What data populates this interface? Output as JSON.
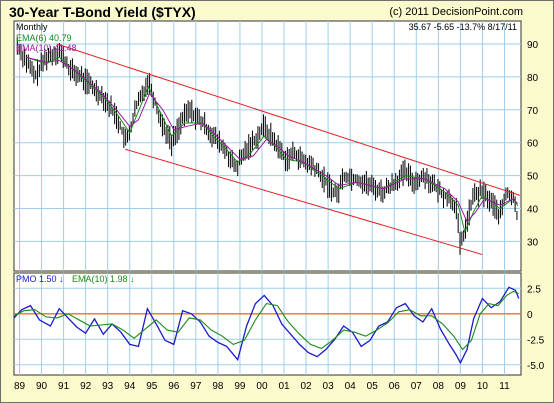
{
  "header": {
    "title": "30-Year T-Bond Yield ($TYX)",
    "copyright": "(c) 2011 DecisionPoint.com"
  },
  "chart_data": [
    {
      "type": "line",
      "title": "30-Year T-Bond Yield ($TYX)",
      "period_label": "Monthly",
      "readout": {
        "close": "35.67",
        "change": "-5.65",
        "pct": "-13.7%",
        "date": "8/17/11"
      },
      "legend": [
        {
          "name": "EMA(6)",
          "value": "40.79",
          "color": "#1a8a1a"
        },
        {
          "name": "EMA(10)",
          "value": "41.48",
          "color": "#9a1aa0"
        }
      ],
      "ylim": [
        21,
        97
      ],
      "y_ticks": [
        "30",
        "40",
        "50",
        "60",
        "70",
        "80",
        "90"
      ],
      "x_ticks": [
        "89",
        "90",
        "91",
        "92",
        "93",
        "94",
        "95",
        "96",
        "97",
        "98",
        "99",
        "00",
        "01",
        "02",
        "03",
        "04",
        "05",
        "06",
        "07",
        "08",
        "09",
        "10",
        "11"
      ],
      "x_range": [
        1988.75,
        2011.75
      ],
      "grid": true,
      "series": [
        {
          "name": "",
          "color": "#000000",
          "x": [
            1988.9,
            1989.3,
            1989.7,
            1990.2,
            1990.8,
            1991.3,
            1991.8,
            1992.3,
            1992.8,
            1993.4,
            1993.85,
            1994.3,
            1994.85,
            1995.4,
            1995.9,
            1996.3,
            1996.7,
            1997.3,
            1997.8,
            1998.4,
            1998.8,
            1999.3,
            1999.8,
            2000.1,
            2000.6,
            2001.1,
            2001.5,
            2001.9,
            2002.3,
            2002.9,
            2003.4,
            2003.7,
            2004.3,
            2004.9,
            2005.5,
            2006.0,
            2006.5,
            2006.9,
            2007.4,
            2007.9,
            2008.3,
            2008.8,
            2009.0,
            2009.3,
            2009.6,
            2010.0,
            2010.4,
            2010.8,
            2011.1,
            2011.4,
            2011.6
          ],
          "y": [
            89.5,
            85,
            80,
            86,
            88,
            82,
            80,
            77,
            74,
            68,
            60,
            71,
            79,
            67,
            60,
            66,
            70,
            66,
            62,
            57,
            52,
            58,
            62,
            65,
            60,
            55,
            57,
            54,
            53,
            48,
            44,
            50,
            49,
            47,
            45,
            48,
            51,
            48,
            50,
            46,
            44,
            41,
            28,
            36,
            44,
            45,
            42,
            38,
            45,
            43,
            37
          ]
        },
        {
          "name": "EMA(6)",
          "color": "#1a8a1a",
          "x": [
            1989.3,
            1990.2,
            1990.8,
            1991.3,
            1991.8,
            1992.3,
            1992.8,
            1993.4,
            1994.0,
            1994.3,
            1994.85,
            1995.4,
            1995.9,
            1996.5,
            1997.3,
            1997.8,
            1998.4,
            1998.9,
            1999.5,
            2000.1,
            2000.6,
            2001.1,
            2001.9,
            2002.9,
            2003.5,
            2004.3,
            2004.9,
            2005.5,
            2006.5,
            2007.4,
            2008.3,
            2008.9,
            2009.2,
            2009.6,
            2010.0,
            2010.8,
            2011.4,
            2011.6
          ],
          "y": [
            86,
            84,
            86,
            83,
            80,
            77,
            74,
            69,
            63,
            68,
            77,
            69,
            62,
            66,
            66,
            62,
            58,
            54,
            57,
            62,
            59,
            55,
            54,
            49,
            46,
            48,
            47,
            46,
            50,
            49,
            45,
            41,
            33,
            39,
            44,
            40,
            43,
            40.79
          ]
        },
        {
          "name": "EMA(10)",
          "color": "#9a1aa0",
          "x": [
            1989.3,
            1990.2,
            1990.8,
            1991.3,
            1991.8,
            1992.3,
            1992.8,
            1993.4,
            1994.0,
            1994.4,
            1994.9,
            1995.5,
            1996.0,
            1996.6,
            1997.3,
            1997.8,
            1998.4,
            1999.0,
            1999.6,
            2000.2,
            2000.7,
            2001.2,
            2001.9,
            2002.9,
            2003.5,
            2004.3,
            2004.9,
            2005.5,
            2006.5,
            2007.4,
            2008.3,
            2008.9,
            2009.3,
            2009.7,
            2010.1,
            2010.8,
            2011.4,
            2011.6
          ],
          "y": [
            86,
            84.5,
            85,
            83,
            80.5,
            77.5,
            74.5,
            70,
            65,
            67,
            75,
            70,
            64,
            65,
            66,
            63,
            59,
            55,
            56,
            61,
            59,
            56,
            54,
            50,
            47,
            48,
            47,
            46,
            49,
            49,
            46,
            42,
            36,
            39,
            43,
            41,
            43,
            41.48
          ]
        }
      ],
      "channel": {
        "color": "#e02020",
        "upper": {
          "x": [
            1990.7,
            2011.7
          ],
          "y": [
            90,
            44
          ]
        },
        "lower": {
          "x": [
            1993.8,
            2010.0
          ],
          "y": [
            58,
            26
          ]
        }
      }
    },
    {
      "type": "line",
      "title": "",
      "legend": [
        {
          "name": "PMO",
          "value": "1.50",
          "arrow": "down",
          "color": "#1a1ad0"
        },
        {
          "name": "EMA(10)",
          "value": "1.98",
          "arrow": "down",
          "color": "#1a8a1a"
        }
      ],
      "ylim": [
        -6,
        4
      ],
      "y_ticks": [
        "2.5",
        "0",
        "-2.5",
        "-5.0"
      ],
      "zero_line_color": "#e07a1a",
      "grid": true,
      "series": [
        {
          "name": "PMO",
          "color": "#1a1ad0",
          "x": [
            1988.75,
            1989.1,
            1989.5,
            1989.9,
            1990.4,
            1990.8,
            1991.2,
            1991.6,
            1992.0,
            1992.4,
            1992.8,
            1993.2,
            1993.6,
            1994.0,
            1994.4,
            1994.8,
            1995.2,
            1995.6,
            1996.0,
            1996.4,
            1996.8,
            1997.2,
            1997.6,
            1998.0,
            1998.4,
            1998.9,
            1999.3,
            1999.7,
            2000.1,
            2000.5,
            2000.9,
            2001.3,
            2001.7,
            2002.1,
            2002.5,
            2002.9,
            2003.3,
            2003.7,
            2004.1,
            2004.5,
            2004.9,
            2005.3,
            2005.7,
            2006.1,
            2006.5,
            2006.9,
            2007.3,
            2007.7,
            2008.1,
            2008.5,
            2008.8,
            2009.0,
            2009.3,
            2009.6,
            2010.0,
            2010.4,
            2010.8,
            2011.2,
            2011.5,
            2011.65
          ],
          "y": [
            -0.4,
            0.4,
            0.8,
            -0.6,
            -1.2,
            0.5,
            -0.4,
            -1.3,
            -1.9,
            -0.5,
            -2.0,
            -1.0,
            -1.8,
            -3.0,
            -3.2,
            0.5,
            -1.0,
            -2.6,
            -3.0,
            0.3,
            0.0,
            -0.8,
            -2.2,
            -2.8,
            -3.2,
            -4.5,
            -1.2,
            1.0,
            1.8,
            0.8,
            -1.0,
            -2.0,
            -3.0,
            -3.8,
            -4.2,
            -3.5,
            -2.5,
            -1.2,
            -1.8,
            -3.2,
            -2.6,
            -1.2,
            -0.8,
            0.6,
            1.0,
            -0.2,
            -0.8,
            0.5,
            -1.5,
            -3.0,
            -4.0,
            -4.8,
            -3.5,
            -0.5,
            1.5,
            0.6,
            1.2,
            2.6,
            2.3,
            1.5
          ]
        },
        {
          "name": "EMA(10)",
          "color": "#1a8a1a",
          "x": [
            1988.75,
            1989.2,
            1989.7,
            1990.2,
            1990.7,
            1991.2,
            1991.7,
            1992.2,
            1992.7,
            1993.2,
            1993.7,
            1994.2,
            1994.7,
            1995.2,
            1995.7,
            1996.2,
            1996.7,
            1997.2,
            1997.7,
            1998.2,
            1998.7,
            1999.2,
            1999.7,
            2000.2,
            2000.7,
            2001.2,
            2001.7,
            2002.2,
            2002.7,
            2003.2,
            2003.7,
            2004.2,
            2004.7,
            2005.2,
            2005.7,
            2006.2,
            2006.7,
            2007.2,
            2007.7,
            2008.2,
            2008.7,
            2009.1,
            2009.5,
            2009.9,
            2010.3,
            2010.7,
            2011.1,
            2011.4,
            2011.65
          ],
          "y": [
            -0.2,
            0.3,
            0.4,
            -0.3,
            -0.4,
            0.0,
            -0.6,
            -1.2,
            -1.1,
            -1.0,
            -1.6,
            -2.4,
            -1.5,
            -0.6,
            -1.6,
            -1.8,
            -0.4,
            -0.6,
            -1.6,
            -2.2,
            -3.0,
            -2.6,
            -0.6,
            1.0,
            0.8,
            -0.8,
            -2.0,
            -3.0,
            -3.4,
            -2.6,
            -1.6,
            -1.8,
            -2.2,
            -1.6,
            -0.9,
            0.2,
            0.4,
            -0.2,
            -0.2,
            -1.0,
            -2.2,
            -3.5,
            -2.6,
            0.0,
            1.0,
            0.8,
            1.8,
            2.2,
            1.98
          ]
        }
      ]
    }
  ]
}
